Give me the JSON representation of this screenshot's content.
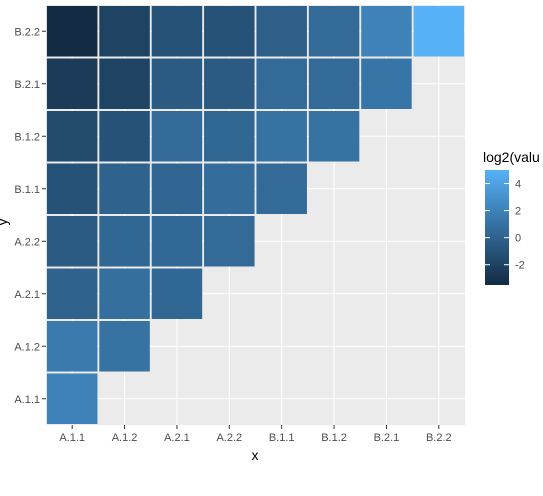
{
  "chart_data": {
    "type": "heatmap",
    "title": "",
    "xlabel": "x",
    "ylabel": "y",
    "x_categories": [
      "A.1.1",
      "A.1.2",
      "A.2.1",
      "A.2.2",
      "B.1.1",
      "B.1.2",
      "B.2.1",
      "B.2.2"
    ],
    "y_categories": [
      "A.1.1",
      "A.1.2",
      "A.2.1",
      "A.2.2",
      "B.1.1",
      "B.1.2",
      "B.2.1",
      "B.2.2"
    ],
    "fill_label": "log2(value)",
    "cells": [
      {
        "x": "A.1.1",
        "y": "A.1.1",
        "value": 2.0
      },
      {
        "x": "A.1.1",
        "y": "A.1.2",
        "value": 1.5
      },
      {
        "x": "A.1.2",
        "y": "A.1.2",
        "value": 1.0
      },
      {
        "x": "A.1.1",
        "y": "A.2.1",
        "value": 0.0
      },
      {
        "x": "A.1.2",
        "y": "A.2.1",
        "value": 0.8
      },
      {
        "x": "A.2.1",
        "y": "A.2.1",
        "value": 0.3
      },
      {
        "x": "A.1.1",
        "y": "A.2.2",
        "value": -0.5
      },
      {
        "x": "A.1.2",
        "y": "A.2.2",
        "value": 0.3
      },
      {
        "x": "A.2.1",
        "y": "A.2.2",
        "value": 0.4
      },
      {
        "x": "A.2.2",
        "y": "A.2.2",
        "value": 0.5
      },
      {
        "x": "A.1.1",
        "y": "B.1.1",
        "value": -1.0
      },
      {
        "x": "A.1.2",
        "y": "B.1.1",
        "value": 0.0
      },
      {
        "x": "A.2.1",
        "y": "B.1.1",
        "value": 0.2
      },
      {
        "x": "A.2.2",
        "y": "B.1.1",
        "value": 0.7
      },
      {
        "x": "B.1.1",
        "y": "B.1.1",
        "value": 0.5
      },
      {
        "x": "A.1.1",
        "y": "B.1.2",
        "value": -1.5
      },
      {
        "x": "A.1.2",
        "y": "B.1.2",
        "value": -1.0
      },
      {
        "x": "A.2.1",
        "y": "B.1.2",
        "value": 0.5
      },
      {
        "x": "A.2.2",
        "y": "B.1.2",
        "value": 0.3
      },
      {
        "x": "B.1.1",
        "y": "B.1.2",
        "value": 1.0
      },
      {
        "x": "B.1.2",
        "y": "B.1.2",
        "value": 1.0
      },
      {
        "x": "A.1.1",
        "y": "B.2.1",
        "value": -2.5
      },
      {
        "x": "A.1.2",
        "y": "B.2.1",
        "value": -2.0
      },
      {
        "x": "A.2.1",
        "y": "B.2.1",
        "value": -0.5
      },
      {
        "x": "A.2.2",
        "y": "B.2.1",
        "value": -0.5
      },
      {
        "x": "B.1.1",
        "y": "B.2.1",
        "value": 0.5
      },
      {
        "x": "B.1.2",
        "y": "B.2.1",
        "value": 0.5
      },
      {
        "x": "B.2.1",
        "y": "B.2.1",
        "value": 1.2
      },
      {
        "x": "A.1.1",
        "y": "B.2.2",
        "value": -3.5
      },
      {
        "x": "A.1.2",
        "y": "B.2.2",
        "value": -2.0
      },
      {
        "x": "A.2.1",
        "y": "B.2.2",
        "value": -1.0
      },
      {
        "x": "A.2.2",
        "y": "B.2.2",
        "value": -1.0
      },
      {
        "x": "B.1.1",
        "y": "B.2.2",
        "value": -0.2
      },
      {
        "x": "B.1.2",
        "y": "B.2.2",
        "value": 0.5
      },
      {
        "x": "B.2.1",
        "y": "B.2.2",
        "value": 2.0
      },
      {
        "x": "B.2.2",
        "y": "B.2.2",
        "value": 5.0
      }
    ],
    "color_scale": {
      "low": "#132B43",
      "high": "#56B1F7",
      "limits": [
        -3.5,
        5.0
      ]
    },
    "legend": {
      "title": "log2(valu",
      "breaks": [
        4,
        2,
        0,
        -2
      ],
      "break_labels": [
        "4",
        "2",
        "0",
        "-2"
      ],
      "placement": "right"
    },
    "panel_background": "#EBEBEB",
    "grid": true
  }
}
